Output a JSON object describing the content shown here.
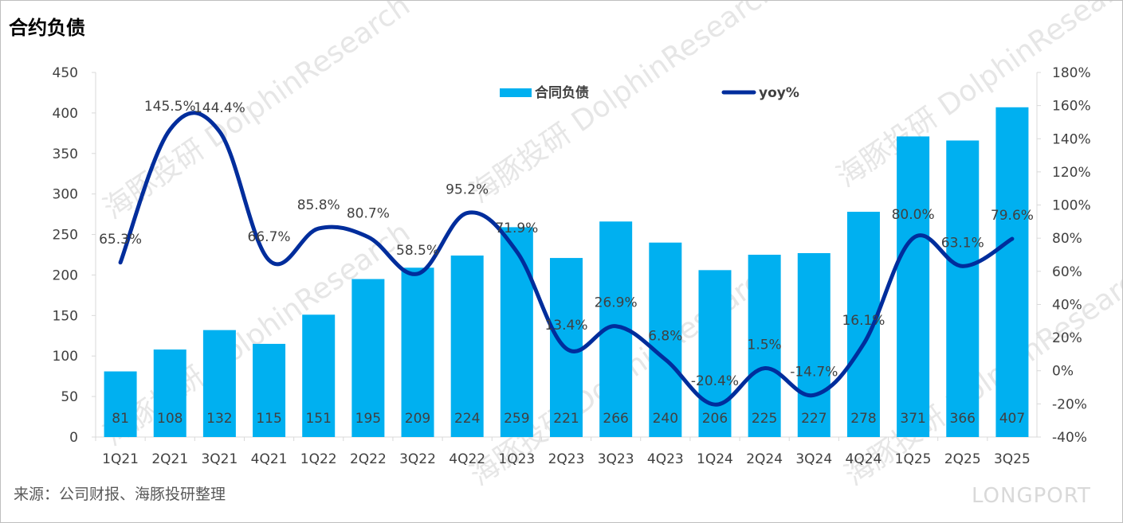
{
  "title": "合约负债",
  "source": "来源：公司财报、海豚投研整理",
  "brand": "LONGPORT",
  "watermark": "海豚投研 DolphinResearch",
  "colors": {
    "bar": "#00B0F0",
    "line": "#002D9C",
    "axis": "#d9d9d9",
    "text": "#404040"
  },
  "chart_data": {
    "type": "bar+line",
    "categories": [
      "1Q21",
      "2Q21",
      "3Q21",
      "4Q21",
      "1Q22",
      "2Q22",
      "3Q22",
      "4Q22",
      "1Q23",
      "2Q23",
      "3Q23",
      "4Q23",
      "1Q24",
      "2Q24",
      "3Q24",
      "4Q24",
      "1Q25",
      "2Q25",
      "3Q25"
    ],
    "series": [
      {
        "name": "合同负债",
        "type": "bar",
        "axis": "left",
        "values": [
          81,
          108,
          132,
          115,
          151,
          195,
          209,
          224,
          259,
          221,
          266,
          240,
          206,
          225,
          227,
          278,
          371,
          366,
          407
        ]
      },
      {
        "name": "yoy%",
        "type": "line",
        "axis": "right",
        "values": [
          65.3,
          145.5,
          144.4,
          66.7,
          85.8,
          80.7,
          58.5,
          95.2,
          71.9,
          13.4,
          26.9,
          6.8,
          -20.4,
          1.5,
          -14.7,
          16.1,
          80.0,
          63.1,
          79.6
        ]
      }
    ],
    "y_left": {
      "min": 0,
      "max": 450,
      "step": 50,
      "ticks": [
        "0",
        "50",
        "100",
        "150",
        "200",
        "250",
        "300",
        "350",
        "400",
        "450"
      ]
    },
    "y_right": {
      "min": -40,
      "max": 180,
      "step": 20,
      "ticks": [
        "-40%",
        "-20%",
        "0%",
        "20%",
        "40%",
        "60%",
        "80%",
        "100%",
        "120%",
        "140%",
        "160%",
        "180%"
      ]
    },
    "bar_labels": [
      "81",
      "108",
      "132",
      "115",
      "151",
      "195",
      "209",
      "224",
      "259",
      "221",
      "266",
      "240",
      "206",
      "225",
      "227",
      "278",
      "371",
      "366",
      "407"
    ],
    "line_labels": [
      "65.3%",
      "145.5%",
      "144.4%",
      "66.7%",
      "85.8%",
      "80.7%",
      "58.5%",
      "95.2%",
      "71.9%",
      "13.4%",
      "26.9%",
      "6.8%",
      "-20.4%",
      "1.5%",
      "-14.7%",
      "16.1%",
      "80.0%",
      "63.1%",
      "79.6%"
    ],
    "legend": {
      "placement": "top-center",
      "items": [
        "合同负债",
        "yoy%"
      ]
    },
    "grid": false
  }
}
